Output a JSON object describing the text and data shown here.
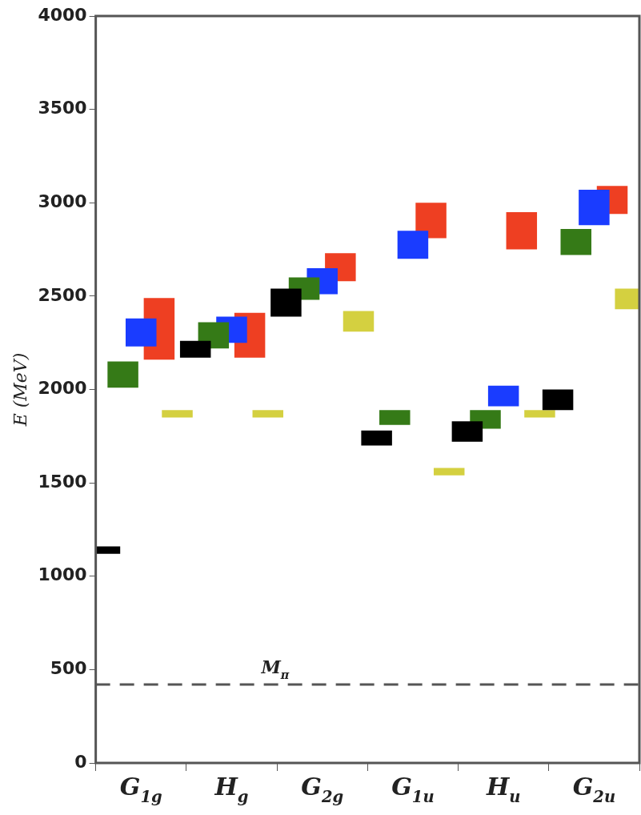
{
  "chart_data": {
    "type": "bar",
    "ylabel": "E (MeV)",
    "categories": [
      "G$_{1g}$",
      "H$_{g}$",
      "G$_{2g}$",
      "G$_{1u}$",
      "H$_{u}$",
      "G$_{2u}$"
    ],
    "series": [
      {
        "color": "#000000",
        "base": [
          1120,
          2170,
          2390,
          1700,
          1720,
          1890
        ],
        "values": [
          40,
          90,
          150,
          80,
          110,
          110
        ]
      },
      {
        "color": "#357a17",
        "base": [
          2010,
          2220,
          2480,
          1810,
          1790,
          2720
        ],
        "values": [
          140,
          140,
          120,
          80,
          100,
          140
        ]
      },
      {
        "color": "#1a3cff",
        "base": [
          2230,
          2250,
          2510,
          2700,
          1910,
          2880
        ],
        "values": [
          150,
          140,
          140,
          150,
          110,
          190
        ]
      },
      {
        "color": "#ee3f22",
        "base": [
          2160,
          2170,
          2580,
          2810,
          2750,
          2940
        ],
        "values": [
          330,
          240,
          150,
          190,
          200,
          150
        ]
      },
      {
        "color": "#d4d040",
        "base": [
          1850,
          1850,
          2310,
          1540,
          1850,
          2430
        ],
        "values": [
          40,
          40,
          110,
          40,
          40,
          110
        ]
      }
    ],
    "ylim": [
      0,
      4000
    ],
    "yticks": [
      0,
      500,
      1000,
      1500,
      2000,
      2500,
      3000,
      3500,
      4000
    ],
    "grid": false,
    "legend": false,
    "ref_lines": [
      {
        "axis": "y",
        "value": 420,
        "label": "M$_{π}$",
        "line_style": "dashed",
        "color": "#555555"
      }
    ]
  }
}
